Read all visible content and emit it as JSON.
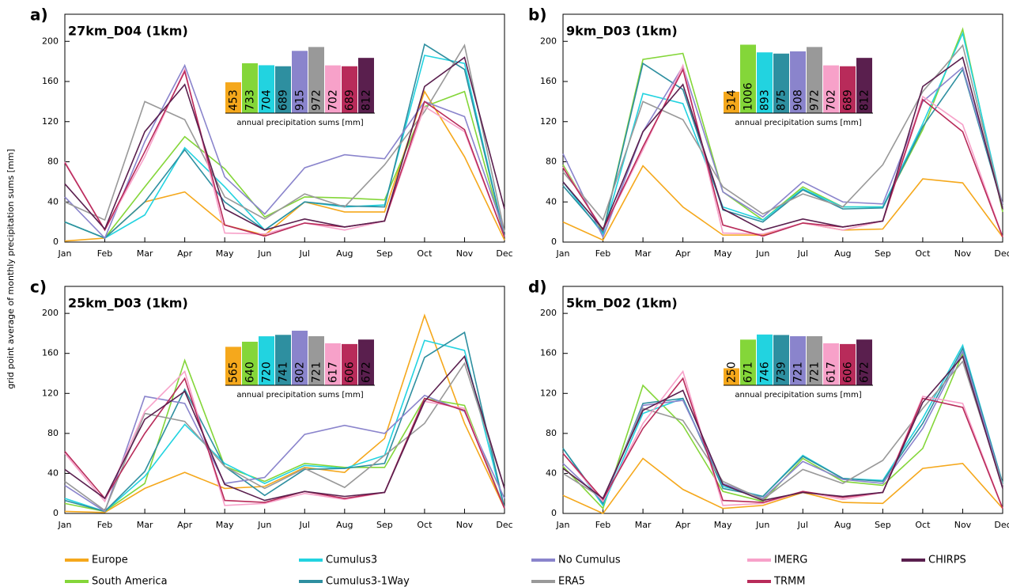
{
  "chart_data": [
    {
      "type": "line",
      "label": "a)",
      "title": "27km_D04 (1km)",
      "ylabel": "grid point average of monthly precipitation sums [mm]",
      "categories": [
        "Jan",
        "Feb",
        "Mar",
        "Apr",
        "May",
        "Jun",
        "Jul",
        "Aug",
        "Sep",
        "Oct",
        "Nov",
        "Dec"
      ],
      "ylim": [
        0,
        227
      ],
      "yticks": [
        0,
        40,
        80,
        120,
        160,
        200
      ],
      "series": [
        {
          "name": "Europe",
          "color": "#f5a81c",
          "values": [
            1,
            4,
            40,
            50,
            17,
            7,
            40,
            30,
            30,
            150,
            85,
            2
          ]
        },
        {
          "name": "South America",
          "color": "#84d639",
          "values": [
            20,
            4,
            55,
            105,
            73,
            25,
            45,
            44,
            42,
            135,
            150,
            5
          ]
        },
        {
          "name": "Cumulus3",
          "color": "#22d3e0",
          "values": [
            20,
            4,
            27,
            94,
            55,
            12,
            40,
            35,
            37,
            186,
            178,
            5
          ]
        },
        {
          "name": "Cumulus3-1Way",
          "color": "#2e8fa0",
          "values": [
            20,
            4,
            40,
            92,
            40,
            12,
            40,
            36,
            35,
            197,
            172,
            5
          ]
        },
        {
          "name": "No Cumulus",
          "color": "#8a84cc",
          "values": [
            45,
            4,
            100,
            176,
            65,
            28,
            74,
            87,
            83,
            140,
            125,
            10
          ]
        },
        {
          "name": "ERA5",
          "color": "#999999",
          "values": [
            40,
            22,
            140,
            122,
            45,
            23,
            48,
            35,
            77,
            130,
            196,
            10
          ]
        },
        {
          "name": "IMERG",
          "color": "#f7a1c9",
          "values": [
            80,
            12,
            85,
            172,
            9,
            8,
            19,
            12,
            21,
            135,
            110,
            5
          ]
        },
        {
          "name": "TRMM",
          "color": "#b82b5a",
          "values": [
            79,
            12,
            90,
            170,
            17,
            6,
            19,
            15,
            21,
            140,
            112,
            5
          ]
        },
        {
          "name": "CHIRPS",
          "color": "#5a1f4e",
          "values": [
            58,
            13,
            110,
            157,
            33,
            12,
            23,
            15,
            21,
            155,
            184,
            33
          ]
        }
      ],
      "inset": {
        "type": "bar",
        "label": "annual precipitation sums [mm]",
        "values": [
          453,
          733,
          704,
          689,
          915,
          972,
          702,
          689,
          812
        ]
      }
    },
    {
      "type": "line",
      "label": "b)",
      "title": "9km_D03 (1km)",
      "categories": [
        "Jan",
        "Feb",
        "Mar",
        "Apr",
        "May",
        "Jun",
        "Jul",
        "Aug",
        "Sep",
        "Oct",
        "Nov",
        "Dec"
      ],
      "ylim": [
        0,
        227
      ],
      "yticks": [
        0,
        40,
        80,
        120,
        160,
        200
      ],
      "series": [
        {
          "name": "Europe",
          "color": "#f5a81c",
          "values": [
            20,
            2,
            76,
            35,
            7,
            7,
            19,
            12,
            13,
            63,
            59,
            5
          ]
        },
        {
          "name": "South America",
          "color": "#84d639",
          "values": [
            77,
            10,
            182,
            188,
            50,
            22,
            55,
            35,
            35,
            112,
            212,
            30
          ]
        },
        {
          "name": "Cumulus3",
          "color": "#22d3e0",
          "values": [
            60,
            8,
            148,
            138,
            35,
            22,
            53,
            35,
            35,
            118,
            208,
            35
          ]
        },
        {
          "name": "Cumulus3-1Way",
          "color": "#2e8fa0",
          "values": [
            56,
            10,
            178,
            152,
            32,
            20,
            52,
            33,
            34,
            115,
            172,
            35
          ]
        },
        {
          "name": "No Cumulus",
          "color": "#8a84cc",
          "values": [
            88,
            5,
            110,
            175,
            50,
            25,
            60,
            40,
            38,
            140,
            174,
            38
          ]
        },
        {
          "name": "ERA5",
          "color": "#999999",
          "values": [
            70,
            22,
            140,
            122,
            55,
            28,
            48,
            35,
            77,
            150,
            196,
            35
          ]
        },
        {
          "name": "IMERG",
          "color": "#f7a1c9",
          "values": [
            75,
            12,
            92,
            176,
            9,
            8,
            19,
            12,
            21,
            145,
            117,
            5
          ]
        },
        {
          "name": "TRMM",
          "color": "#b82b5a",
          "values": [
            74,
            12,
            95,
            172,
            17,
            6,
            19,
            15,
            21,
            142,
            110,
            5
          ]
        },
        {
          "name": "CHIRPS",
          "color": "#5a1f4e",
          "values": [
            60,
            13,
            110,
            157,
            33,
            12,
            23,
            15,
            21,
            155,
            184,
            33
          ]
        }
      ],
      "inset": {
        "type": "bar",
        "label": "annual precipitation sums [mm]",
        "values": [
          314,
          1006,
          893,
          875,
          908,
          972,
          702,
          689,
          812
        ]
      }
    },
    {
      "type": "line",
      "label": "c)",
      "title": "25km_D03 (1km)",
      "categories": [
        "Jan",
        "Feb",
        "Mar",
        "Apr",
        "May",
        "Jun",
        "Jul",
        "Aug",
        "Sep",
        "Oct",
        "Nov",
        "Dec"
      ],
      "ylim": [
        0,
        227
      ],
      "yticks": [
        0,
        40,
        80,
        120,
        160,
        200
      ],
      "series": [
        {
          "name": "Europe",
          "color": "#f5a81c",
          "values": [
            2,
            1,
            25,
            41,
            25,
            27,
            46,
            41,
            75,
            198,
            90,
            5
          ]
        },
        {
          "name": "South America",
          "color": "#84d639",
          "values": [
            10,
            2,
            30,
            153,
            47,
            32,
            50,
            46,
            46,
            115,
            108,
            5
          ]
        },
        {
          "name": "Cumulus3",
          "color": "#22d3e0",
          "values": [
            15,
            2,
            37,
            89,
            50,
            30,
            48,
            45,
            58,
            173,
            163,
            5
          ]
        },
        {
          "name": "Cumulus3-1Way",
          "color": "#2e8fa0",
          "values": [
            13,
            2,
            42,
            124,
            47,
            18,
            44,
            45,
            50,
            156,
            181,
            5
          ]
        },
        {
          "name": "No Cumulus",
          "color": "#8a84cc",
          "values": [
            28,
            2,
            117,
            110,
            30,
            36,
            79,
            88,
            80,
            118,
            102,
            15
          ]
        },
        {
          "name": "ERA5",
          "color": "#999999",
          "values": [
            32,
            3,
            100,
            92,
            47,
            25,
            45,
            26,
            58,
            90,
            150,
            25
          ]
        },
        {
          "name": "IMERG",
          "color": "#f7a1c9",
          "values": [
            60,
            12,
            102,
            142,
            8,
            10,
            20,
            14,
            21,
            112,
            105,
            5
          ]
        },
        {
          "name": "TRMM",
          "color": "#b82b5a",
          "values": [
            62,
            15,
            80,
            135,
            13,
            11,
            22,
            15,
            21,
            115,
            103,
            5
          ]
        },
        {
          "name": "CHIRPS",
          "color": "#5a1f4e",
          "values": [
            44,
            15,
            94,
            122,
            29,
            13,
            22,
            17,
            21,
            112,
            157,
            25
          ]
        }
      ],
      "inset": {
        "type": "bar",
        "label": "annual precipitation sums [mm]",
        "values": [
          565,
          640,
          720,
          741,
          802,
          721,
          617,
          606,
          672
        ]
      }
    },
    {
      "type": "line",
      "label": "d)",
      "title": "5km_D02 (1km)",
      "categories": [
        "Jan",
        "Feb",
        "Mar",
        "Apr",
        "May",
        "Jun",
        "Jul",
        "Aug",
        "Sep",
        "Oct",
        "Nov",
        "Dec"
      ],
      "ylim": [
        0,
        227
      ],
      "yticks": [
        0,
        40,
        80,
        120,
        160,
        200
      ],
      "series": [
        {
          "name": "Europe",
          "color": "#f5a81c",
          "values": [
            18,
            0,
            55,
            24,
            5,
            8,
            21,
            11,
            10,
            45,
            50,
            5
          ]
        },
        {
          "name": "South America",
          "color": "#84d639",
          "values": [
            47,
            5,
            128,
            88,
            22,
            12,
            55,
            32,
            28,
            65,
            160,
            30
          ]
        },
        {
          "name": "Cumulus3",
          "color": "#22d3e0",
          "values": [
            65,
            8,
            100,
            115,
            27,
            17,
            58,
            35,
            33,
            95,
            168,
            30
          ]
        },
        {
          "name": "Cumulus3-1Way",
          "color": "#2e8fa0",
          "values": [
            65,
            10,
            110,
            115,
            25,
            17,
            57,
            35,
            32,
            90,
            165,
            30
          ]
        },
        {
          "name": "No Cumulus",
          "color": "#8a84cc",
          "values": [
            50,
            12,
            108,
            113,
            30,
            15,
            52,
            34,
            30,
            85,
            162,
            28
          ]
        },
        {
          "name": "ERA5",
          "color": "#999999",
          "values": [
            40,
            15,
            105,
            93,
            32,
            14,
            44,
            30,
            53,
            105,
            152,
            28
          ]
        },
        {
          "name": "IMERG",
          "color": "#f7a1c9",
          "values": [
            60,
            12,
            90,
            142,
            8,
            10,
            22,
            14,
            21,
            117,
            110,
            5
          ]
        },
        {
          "name": "TRMM",
          "color": "#b82b5a",
          "values": [
            60,
            14,
            85,
            135,
            13,
            11,
            22,
            16,
            21,
            115,
            106,
            5
          ]
        },
        {
          "name": "CHIRPS",
          "color": "#5a1f4e",
          "values": [
            45,
            15,
            103,
            123,
            29,
            13,
            21,
            17,
            21,
            111,
            157,
            25
          ]
        }
      ],
      "inset": {
        "type": "bar",
        "label": "annual precipitation sums [mm]",
        "values": [
          250,
          671,
          746,
          739,
          721,
          721,
          617,
          606,
          672
        ]
      }
    }
  ]
}
